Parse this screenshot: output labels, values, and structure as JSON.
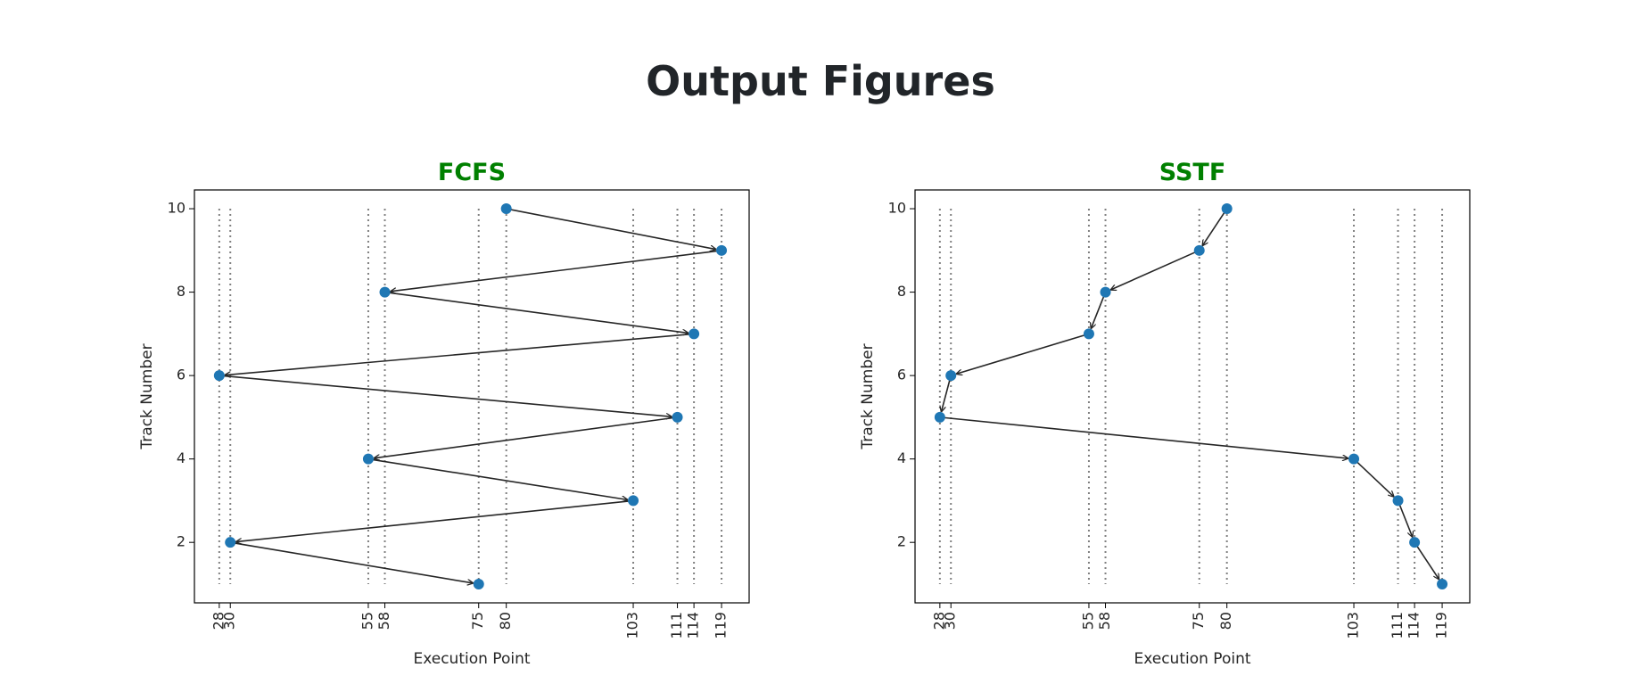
{
  "page": {
    "title": "Output Figures"
  },
  "colors": {
    "title": "#212529",
    "chart_title": "#008000",
    "point": "#1f77b4",
    "arrow": "#262626",
    "guide": "#808080"
  },
  "chart_data": [
    {
      "type": "scatter",
      "title": "FCFS",
      "xlabel": "Execution Point",
      "ylabel": "Track Number",
      "x_ticks": [
        28,
        30,
        55,
        58,
        75,
        80,
        103,
        111,
        114,
        119
      ],
      "y_ticks": [
        2,
        4,
        6,
        8,
        10
      ],
      "xlim": [
        23.5,
        124
      ],
      "ylim": [
        0.55,
        10.45
      ],
      "points": [
        {
          "x": 80,
          "y": 10
        },
        {
          "x": 119,
          "y": 9
        },
        {
          "x": 58,
          "y": 8
        },
        {
          "x": 114,
          "y": 7
        },
        {
          "x": 28,
          "y": 6
        },
        {
          "x": 111,
          "y": 5
        },
        {
          "x": 55,
          "y": 4
        },
        {
          "x": 103,
          "y": 3
        },
        {
          "x": 30,
          "y": 2
        },
        {
          "x": 75,
          "y": 1
        }
      ],
      "arrows": "sequential",
      "vertical_guides": "dotted at each x tick"
    },
    {
      "type": "scatter",
      "title": "SSTF",
      "xlabel": "Execution Point",
      "ylabel": "Track Number",
      "x_ticks": [
        28,
        30,
        55,
        58,
        75,
        80,
        103,
        111,
        114,
        119
      ],
      "y_ticks": [
        2,
        4,
        6,
        8,
        10
      ],
      "xlim": [
        23.5,
        124
      ],
      "ylim": [
        0.55,
        10.45
      ],
      "points": [
        {
          "x": 80,
          "y": 10
        },
        {
          "x": 75,
          "y": 9
        },
        {
          "x": 58,
          "y": 8
        },
        {
          "x": 55,
          "y": 7
        },
        {
          "x": 30,
          "y": 6
        },
        {
          "x": 28,
          "y": 5
        },
        {
          "x": 103,
          "y": 4
        },
        {
          "x": 111,
          "y": 3
        },
        {
          "x": 114,
          "y": 2
        },
        {
          "x": 119,
          "y": 1
        }
      ],
      "arrows": "sequential",
      "vertical_guides": "dotted at each x tick"
    }
  ]
}
